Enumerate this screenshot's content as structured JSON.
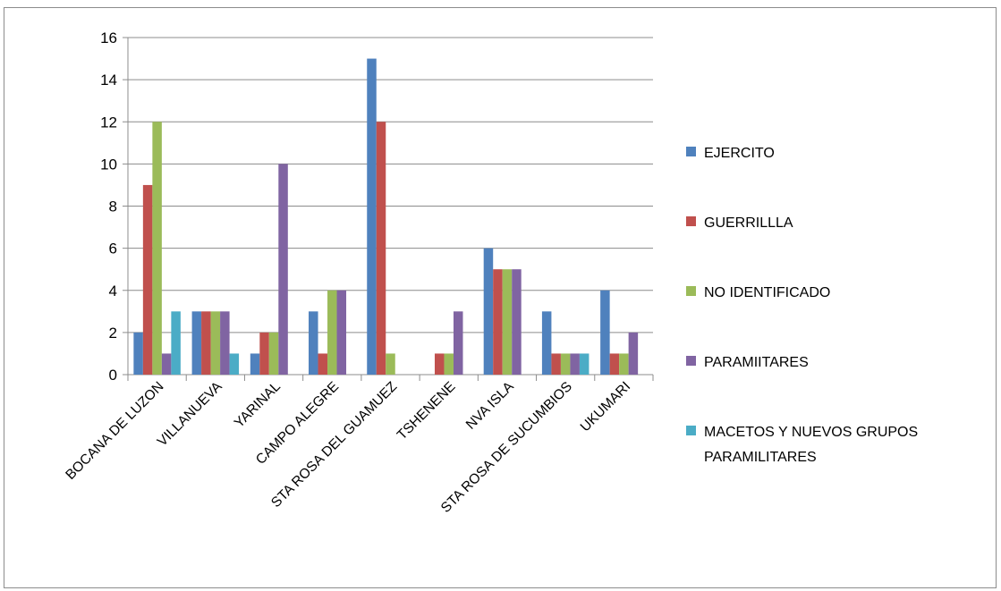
{
  "chart_data": {
    "type": "bar",
    "title": "",
    "xlabel": "",
    "ylabel": "",
    "ylim": [
      0,
      16
    ],
    "yticks": [
      0,
      2,
      4,
      6,
      8,
      10,
      12,
      14,
      16
    ],
    "grid": true,
    "legend_position": "right",
    "categories": [
      "BOCANA DE LUZON",
      "VILLANUEVA",
      "YARINAL",
      "CAMPO ALEGRE",
      "STA ROSA DEL GUAMUEZ",
      "TSHENENE",
      "NVA ISLA",
      "STA ROSA DE SUCUMBIOS",
      "UKUMARI"
    ],
    "series": [
      {
        "name": "EJERCITO",
        "color": "#4f81bd",
        "values": [
          2,
          3,
          1,
          3,
          15,
          0,
          6,
          3,
          4
        ]
      },
      {
        "name": "GUERRILLLA",
        "color": "#c0504d",
        "values": [
          9,
          3,
          2,
          1,
          12,
          1,
          5,
          1,
          1
        ]
      },
      {
        "name": "NO IDENTIFICADO",
        "color": "#9bbb59",
        "values": [
          12,
          3,
          2,
          4,
          1,
          1,
          5,
          1,
          1
        ]
      },
      {
        "name": "PARAMIITARES",
        "color": "#8064a2",
        "values": [
          1,
          3,
          10,
          4,
          0,
          3,
          5,
          1,
          2
        ]
      },
      {
        "name": "MACETOS Y NUEVOS GRUPOS PARAMILITARES",
        "color": "#4bacc6",
        "values": [
          3,
          1,
          0,
          0,
          0,
          0,
          0,
          1,
          0
        ]
      }
    ]
  }
}
